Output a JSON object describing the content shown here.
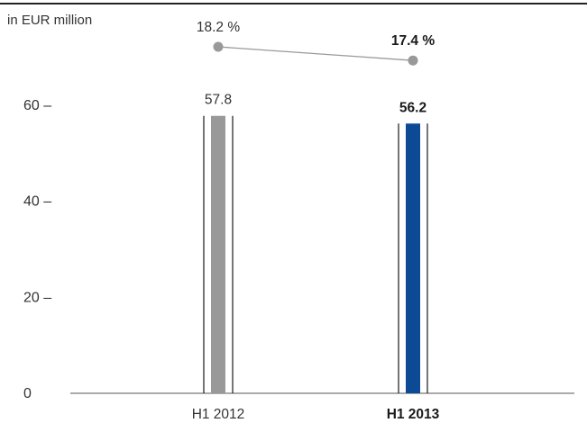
{
  "chart_data": {
    "type": "bar",
    "unit_label": "in EUR million",
    "categories": [
      "H1 2012",
      "H1 2013"
    ],
    "values": [
      57.8,
      56.2
    ],
    "value_labels": [
      "57.8",
      "56.2"
    ],
    "highlight": [
      false,
      true
    ],
    "bar_colors": [
      "#999999",
      "#0d4a96"
    ],
    "margin_series": {
      "values": [
        18.2,
        17.4
      ],
      "labels": [
        "18.2 %",
        "17.4 %"
      ],
      "color": "#999999"
    },
    "yticks": [
      0,
      20,
      40,
      60
    ],
    "ytick_labels": [
      "0",
      "20 –",
      "40 –",
      "60 –"
    ],
    "ylim": [
      0,
      60
    ],
    "grid": false
  }
}
